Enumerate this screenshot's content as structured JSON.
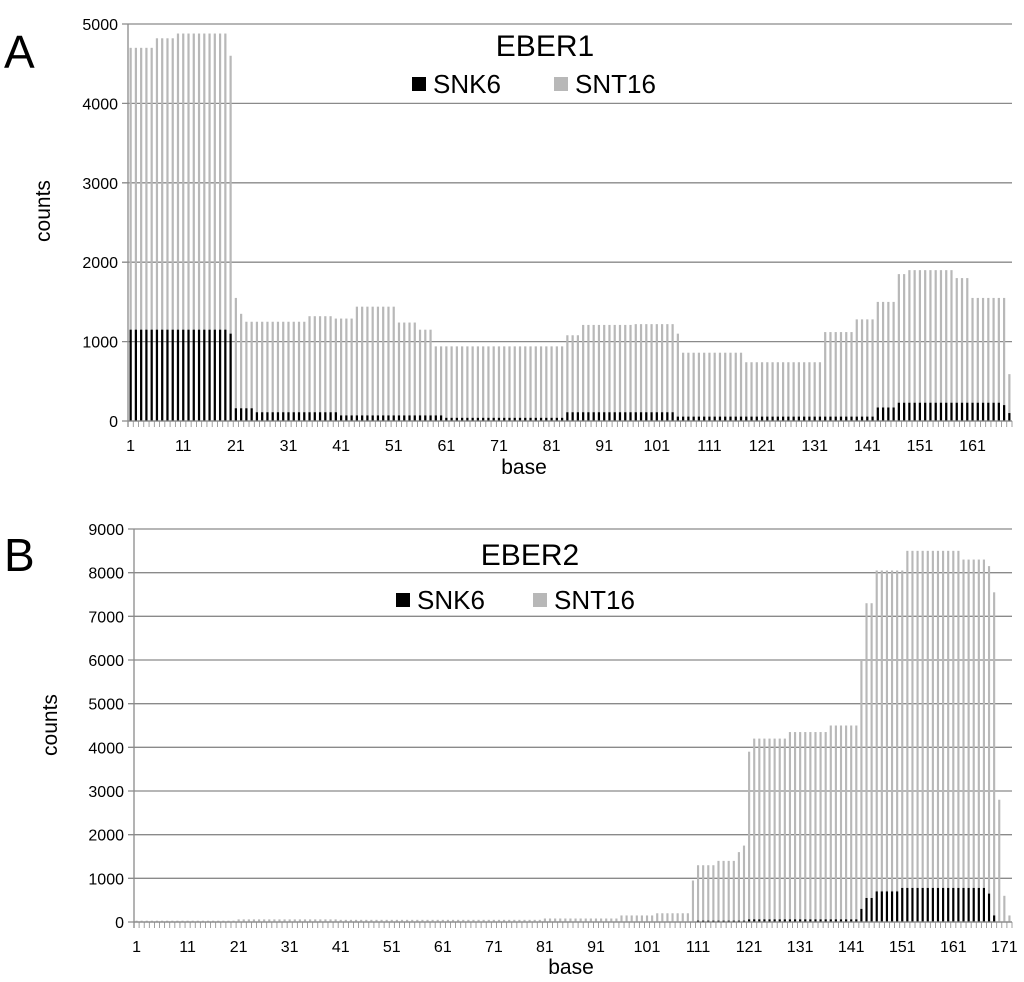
{
  "chart_data": [
    {
      "panel_label": "A",
      "type": "bar",
      "title": "EBER1",
      "xlabel": "base",
      "ylabel": "counts",
      "ylim": [
        0,
        5000
      ],
      "yticks": [
        0,
        1000,
        2000,
        3000,
        4000,
        5000
      ],
      "xtick_labels": [
        "1",
        "11",
        "21",
        "31",
        "41",
        "51",
        "61",
        "71",
        "81",
        "91",
        "101",
        "111",
        "121",
        "131",
        "141",
        "151",
        "161"
      ],
      "x_range": [
        1,
        168
      ],
      "grid": true,
      "legend_position": "top-center",
      "series": [
        {
          "name": "SNK6",
          "color": "#000000",
          "segments": [
            {
              "from": 1,
              "to": 19,
              "value": 1150
            },
            {
              "from": 20,
              "to": 20,
              "value": 1100
            },
            {
              "from": 21,
              "to": 24,
              "value": 160
            },
            {
              "from": 25,
              "to": 40,
              "value": 110
            },
            {
              "from": 41,
              "to": 60,
              "value": 70
            },
            {
              "from": 61,
              "to": 83,
              "value": 40
            },
            {
              "from": 84,
              "to": 104,
              "value": 110
            },
            {
              "from": 105,
              "to": 142,
              "value": 55
            },
            {
              "from": 143,
              "to": 146,
              "value": 170
            },
            {
              "from": 147,
              "to": 166,
              "value": 230
            },
            {
              "from": 167,
              "to": 167,
              "value": 200
            },
            {
              "from": 168,
              "to": 168,
              "value": 100
            }
          ]
        },
        {
          "name": "SNT16",
          "color": "#b8b8b8",
          "segments": [
            {
              "from": 1,
              "to": 5,
              "value": 4700
            },
            {
              "from": 6,
              "to": 9,
              "value": 4820
            },
            {
              "from": 10,
              "to": 19,
              "value": 4880
            },
            {
              "from": 20,
              "to": 20,
              "value": 4600
            },
            {
              "from": 21,
              "to": 21,
              "value": 1550
            },
            {
              "from": 22,
              "to": 22,
              "value": 1350
            },
            {
              "from": 23,
              "to": 34,
              "value": 1250
            },
            {
              "from": 35,
              "to": 39,
              "value": 1320
            },
            {
              "from": 40,
              "to": 43,
              "value": 1290
            },
            {
              "from": 44,
              "to": 51,
              "value": 1440
            },
            {
              "from": 52,
              "to": 55,
              "value": 1240
            },
            {
              "from": 56,
              "to": 58,
              "value": 1150
            },
            {
              "from": 59,
              "to": 83,
              "value": 940
            },
            {
              "from": 84,
              "to": 86,
              "value": 1080
            },
            {
              "from": 87,
              "to": 96,
              "value": 1210
            },
            {
              "from": 97,
              "to": 104,
              "value": 1220
            },
            {
              "from": 105,
              "to": 105,
              "value": 1100
            },
            {
              "from": 106,
              "to": 117,
              "value": 860
            },
            {
              "from": 118,
              "to": 132,
              "value": 740
            },
            {
              "from": 133,
              "to": 138,
              "value": 1120
            },
            {
              "from": 139,
              "to": 142,
              "value": 1280
            },
            {
              "from": 143,
              "to": 146,
              "value": 1500
            },
            {
              "from": 147,
              "to": 148,
              "value": 1850
            },
            {
              "from": 149,
              "to": 157,
              "value": 1900
            },
            {
              "from": 158,
              "to": 160,
              "value": 1800
            },
            {
              "from": 161,
              "to": 167,
              "value": 1550
            },
            {
              "from": 168,
              "to": 168,
              "value": 590
            }
          ]
        }
      ]
    },
    {
      "panel_label": "B",
      "type": "bar",
      "title": "EBER2",
      "xlabel": "base",
      "ylabel": "counts",
      "ylim": [
        0,
        9000
      ],
      "yticks": [
        0,
        1000,
        2000,
        3000,
        4000,
        5000,
        6000,
        7000,
        8000,
        9000
      ],
      "xtick_labels": [
        "1",
        "11",
        "21",
        "31",
        "41",
        "51",
        "61",
        "71",
        "81",
        "91",
        "101",
        "111",
        "121",
        "131",
        "141",
        "151",
        "161",
        "171"
      ],
      "x_range": [
        1,
        172
      ],
      "grid": true,
      "legend_position": "top-center",
      "series": [
        {
          "name": "SNK6",
          "color": "#000000",
          "segments": [
            {
              "from": 1,
              "to": 110,
              "value": 10
            },
            {
              "from": 111,
              "to": 120,
              "value": 30
            },
            {
              "from": 121,
              "to": 142,
              "value": 60
            },
            {
              "from": 143,
              "to": 143,
              "value": 300
            },
            {
              "from": 144,
              "to": 145,
              "value": 550
            },
            {
              "from": 146,
              "to": 150,
              "value": 700
            },
            {
              "from": 151,
              "to": 167,
              "value": 780
            },
            {
              "from": 168,
              "to": 168,
              "value": 650
            },
            {
              "from": 169,
              "to": 169,
              "value": 150
            }
          ]
        },
        {
          "name": "SNT16",
          "color": "#b8b8b8",
          "segments": [
            {
              "from": 1,
              "to": 20,
              "value": 30
            },
            {
              "from": 21,
              "to": 40,
              "value": 60
            },
            {
              "from": 41,
              "to": 80,
              "value": 50
            },
            {
              "from": 81,
              "to": 95,
              "value": 80
            },
            {
              "from": 96,
              "to": 102,
              "value": 150
            },
            {
              "from": 103,
              "to": 109,
              "value": 200
            },
            {
              "from": 110,
              "to": 110,
              "value": 950
            },
            {
              "from": 111,
              "to": 114,
              "value": 1300
            },
            {
              "from": 115,
              "to": 118,
              "value": 1400
            },
            {
              "from": 119,
              "to": 119,
              "value": 1600
            },
            {
              "from": 120,
              "to": 120,
              "value": 1750
            },
            {
              "from": 121,
              "to": 121,
              "value": 3900
            },
            {
              "from": 122,
              "to": 128,
              "value": 4200
            },
            {
              "from": 129,
              "to": 136,
              "value": 4350
            },
            {
              "from": 137,
              "to": 142,
              "value": 4500
            },
            {
              "from": 143,
              "to": 143,
              "value": 6000
            },
            {
              "from": 144,
              "to": 145,
              "value": 7300
            },
            {
              "from": 146,
              "to": 151,
              "value": 8050
            },
            {
              "from": 152,
              "to": 162,
              "value": 8500
            },
            {
              "from": 163,
              "to": 167,
              "value": 8300
            },
            {
              "from": 168,
              "to": 168,
              "value": 8150
            },
            {
              "from": 169,
              "to": 169,
              "value": 7550
            },
            {
              "from": 170,
              "to": 170,
              "value": 2800
            },
            {
              "from": 171,
              "to": 171,
              "value": 600
            },
            {
              "from": 172,
              "to": 172,
              "value": 150
            }
          ]
        }
      ]
    }
  ]
}
